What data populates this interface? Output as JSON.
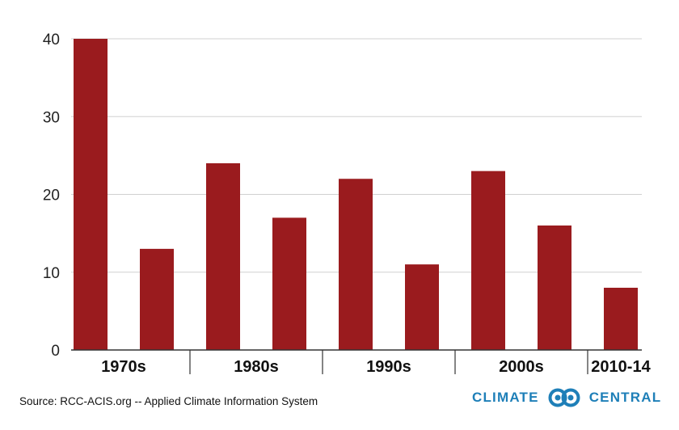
{
  "colors": {
    "bar": "#9a1b1e",
    "grid": "#d0d0d0",
    "axis": "#333333",
    "logo": "#1e7fb8"
  },
  "source_text": "Source: RCC-ACIS.org -- Applied Climate Information System",
  "logo": {
    "word_left": "CLIMATE",
    "word_right": "CENTRAL",
    "icon": "interlocking-rings-icon"
  },
  "chart_data": {
    "type": "bar",
    "title": "",
    "xlabel": "",
    "ylabel": "",
    "ylim": [
      0,
      40
    ],
    "yticks": [
      0,
      10,
      20,
      30,
      40
    ],
    "grid": true,
    "groups": [
      "1970s",
      "1980s",
      "1990s",
      "2000s",
      "2010-14"
    ],
    "bars": [
      {
        "group": "1970s",
        "value": 40
      },
      {
        "group": "1970s",
        "value": 13
      },
      {
        "group": "1980s",
        "value": 24
      },
      {
        "group": "1980s",
        "value": 17
      },
      {
        "group": "1990s",
        "value": 22
      },
      {
        "group": "1990s",
        "value": 11
      },
      {
        "group": "2000s",
        "value": 23
      },
      {
        "group": "2000s",
        "value": 16
      },
      {
        "group": "2010-14",
        "value": 8
      }
    ]
  }
}
